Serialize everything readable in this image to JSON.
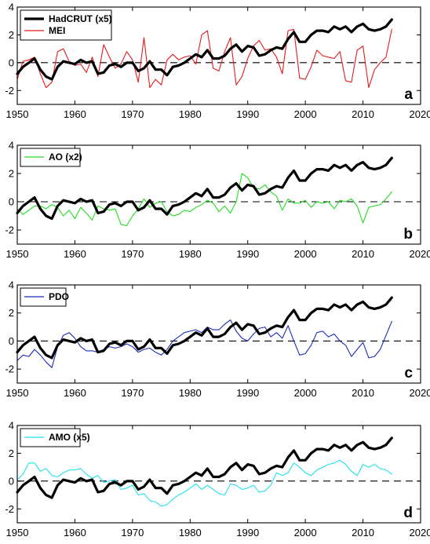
{
  "chart_data": [
    {
      "type": "line",
      "panel_label": "a",
      "xlim": [
        1950,
        2020
      ],
      "ylim": [
        -3,
        4
      ],
      "x_ticks": [
        1950,
        1960,
        1970,
        1980,
        1990,
        2000,
        2010,
        2020
      ],
      "y_ticks": [
        -2,
        0,
        2,
        4
      ],
      "zero_line": "dashed",
      "legend_position": "top-left",
      "series": [
        {
          "name": "HadCRUT (x5)",
          "color": "#000000",
          "width": "thick",
          "x": [
            1950,
            1951,
            1952,
            1953,
            1954,
            1955,
            1956,
            1957,
            1958,
            1959,
            1960,
            1961,
            1962,
            1963,
            1964,
            1965,
            1966,
            1967,
            1968,
            1969,
            1970,
            1971,
            1972,
            1973,
            1974,
            1975,
            1976,
            1977,
            1978,
            1979,
            1980,
            1981,
            1982,
            1983,
            1984,
            1985,
            1986,
            1987,
            1988,
            1989,
            1990,
            1991,
            1992,
            1993,
            1994,
            1995,
            1996,
            1997,
            1998,
            1999,
            2000,
            2001,
            2002,
            2003,
            2004,
            2005,
            2006,
            2007,
            2008,
            2009,
            2010,
            2011,
            2012,
            2013,
            2014,
            2015
          ],
          "y": [
            -0.8,
            -0.3,
            0.0,
            0.3,
            -0.5,
            -1.0,
            -1.2,
            -0.3,
            0.1,
            0.0,
            -0.1,
            0.2,
            0.0,
            0.1,
            -0.8,
            -0.7,
            -0.2,
            -0.1,
            -0.3,
            0.0,
            0.0,
            -0.6,
            -0.4,
            0.1,
            -0.5,
            -0.5,
            -0.9,
            -0.3,
            -0.2,
            0.0,
            0.3,
            0.6,
            0.4,
            0.9,
            0.3,
            0.3,
            0.5,
            1.0,
            1.3,
            0.8,
            1.2,
            1.1,
            0.5,
            0.6,
            0.9,
            1.1,
            1.0,
            1.7,
            2.2,
            1.5,
            1.5,
            2.0,
            2.3,
            2.3,
            2.2,
            2.6,
            2.4,
            2.6,
            2.2,
            2.6,
            2.8,
            2.4,
            2.3,
            2.4,
            2.6,
            3.1
          ]
        },
        {
          "name": "MEI",
          "color": "#e41a1c",
          "width": "thin",
          "x": [
            1950,
            1951,
            1952,
            1953,
            1954,
            1955,
            1956,
            1957,
            1958,
            1959,
            1960,
            1961,
            1962,
            1963,
            1964,
            1965,
            1966,
            1967,
            1968,
            1969,
            1970,
            1971,
            1972,
            1973,
            1974,
            1975,
            1976,
            1977,
            1978,
            1979,
            1980,
            1981,
            1982,
            1983,
            1984,
            1985,
            1986,
            1987,
            1988,
            1989,
            1990,
            1991,
            1992,
            1993,
            1994,
            1995,
            1996,
            1997,
            1998,
            1999,
            2000,
            2001,
            2002,
            2003,
            2004,
            2005,
            2006,
            2007,
            2008,
            2009,
            2010,
            2011,
            2012,
            2013,
            2014,
            2015
          ],
          "y": [
            -1.2,
            0.1,
            0.2,
            0.4,
            -0.8,
            -1.8,
            -1.4,
            0.8,
            1.0,
            0.1,
            -0.2,
            -0.1,
            -0.7,
            0.4,
            -1.0,
            1.3,
            0.4,
            -0.4,
            -0.1,
            0.8,
            0.2,
            -1.4,
            1.8,
            -1.8,
            -1.2,
            -1.6,
            0.2,
            0.6,
            0.2,
            0.4,
            0.5,
            -0.1,
            2.0,
            2.3,
            -0.4,
            -0.6,
            0.8,
            1.8,
            -1.6,
            -1.0,
            0.3,
            1.2,
            1.6,
            0.9,
            1.0,
            0.4,
            -0.8,
            2.3,
            2.4,
            -1.1,
            -1.2,
            -0.3,
            0.9,
            0.5,
            0.4,
            0.3,
            0.8,
            -1.3,
            -1.4,
            0.9,
            1.2,
            -1.8,
            -0.5,
            0.0,
            0.4,
            2.4
          ]
        }
      ]
    },
    {
      "type": "line",
      "panel_label": "b",
      "xlim": [
        1950,
        2020
      ],
      "ylim": [
        -3,
        4
      ],
      "x_ticks": [
        1950,
        1960,
        1970,
        1980,
        1990,
        2000,
        2010,
        2020
      ],
      "y_ticks": [
        -2,
        0,
        2,
        4
      ],
      "zero_line": "dashed",
      "legend_position": "top-left",
      "series": [
        {
          "name": "",
          "color": "#000000",
          "width": "thick",
          "ref": "HadCRUT"
        },
        {
          "name": "AO (x2)",
          "color": "#22dd22",
          "width": "thin",
          "x": [
            1950,
            1951,
            1952,
            1953,
            1954,
            1955,
            1956,
            1957,
            1958,
            1959,
            1960,
            1961,
            1962,
            1963,
            1964,
            1965,
            1966,
            1967,
            1968,
            1969,
            1970,
            1971,
            1972,
            1973,
            1974,
            1975,
            1976,
            1977,
            1978,
            1979,
            1980,
            1981,
            1982,
            1983,
            1984,
            1985,
            1986,
            1987,
            1988,
            1989,
            1990,
            1991,
            1992,
            1993,
            1994,
            1995,
            1996,
            1997,
            1998,
            1999,
            2000,
            2001,
            2002,
            2003,
            2004,
            2005,
            2006,
            2007,
            2008,
            2009,
            2010,
            2011,
            2012,
            2013,
            2014,
            2015
          ],
          "y": [
            -0.5,
            -0.9,
            -0.6,
            -0.3,
            -0.3,
            -0.5,
            -0.2,
            -0.4,
            -1.0,
            -0.6,
            -1.2,
            -0.4,
            -0.8,
            -1.3,
            -0.3,
            -0.5,
            -0.6,
            -0.5,
            -1.6,
            -1.7,
            -1.0,
            -0.5,
            0.2,
            -0.4,
            -0.1,
            0.0,
            -0.7,
            -1.0,
            -0.9,
            -0.6,
            -0.7,
            -0.4,
            -0.2,
            0.1,
            -0.1,
            -0.7,
            -0.3,
            -0.8,
            0.0,
            2.0,
            1.7,
            1.0,
            0.9,
            1.2,
            0.7,
            0.4,
            -0.6,
            0.2,
            -0.1,
            -0.1,
            0.1,
            -0.4,
            0.0,
            -0.1,
            0.0,
            -0.5,
            0.1,
            0.0,
            0.2,
            -0.3,
            -1.5,
            -0.4,
            -0.3,
            -0.2,
            0.2,
            0.7
          ]
        }
      ]
    },
    {
      "type": "line",
      "panel_label": "c",
      "xlim": [
        1950,
        2020
      ],
      "ylim": [
        -3,
        4
      ],
      "x_ticks": [
        1950,
        1960,
        1970,
        1980,
        1990,
        2000,
        2010,
        2020
      ],
      "y_ticks": [
        -2,
        0,
        2,
        4
      ],
      "zero_line": "dashed",
      "legend_position": "top-left",
      "series": [
        {
          "name": "",
          "color": "#000000",
          "width": "thick",
          "ref": "HadCRUT"
        },
        {
          "name": "PDO",
          "color": "#1c2bb8",
          "width": "thin",
          "x": [
            1950,
            1951,
            1952,
            1953,
            1954,
            1955,
            1956,
            1957,
            1958,
            1959,
            1960,
            1961,
            1962,
            1963,
            1964,
            1965,
            1966,
            1967,
            1968,
            1969,
            1970,
            1971,
            1972,
            1973,
            1974,
            1975,
            1976,
            1977,
            1978,
            1979,
            1980,
            1981,
            1982,
            1983,
            1984,
            1985,
            1986,
            1987,
            1988,
            1989,
            1990,
            1991,
            1992,
            1993,
            1994,
            1995,
            1996,
            1997,
            1998,
            1999,
            2000,
            2001,
            2002,
            2003,
            2004,
            2005,
            2006,
            2007,
            2008,
            2009,
            2010,
            2011,
            2012,
            2013,
            2014,
            2015
          ],
          "y": [
            -1.4,
            -1.0,
            -1.1,
            -0.6,
            -1.0,
            -1.5,
            -1.9,
            -0.4,
            0.4,
            0.6,
            0.2,
            -0.4,
            -0.7,
            -0.7,
            -0.8,
            -0.6,
            -0.4,
            -0.5,
            -0.4,
            -0.2,
            -0.4,
            -0.8,
            -0.6,
            -0.5,
            -0.8,
            -1.0,
            -0.6,
            0.0,
            0.3,
            0.6,
            0.7,
            0.8,
            0.6,
            1.0,
            0.8,
            0.8,
            1.2,
            1.5,
            0.7,
            0.2,
            0.0,
            0.5,
            0.9,
            1.0,
            0.3,
            0.6,
            0.2,
            1.1,
            0.0,
            -1.0,
            -0.9,
            -0.3,
            0.6,
            0.7,
            0.3,
            0.5,
            0.0,
            -0.3,
            -1.1,
            -0.6,
            -0.1,
            -1.2,
            -1.1,
            -0.6,
            0.4,
            1.4
          ]
        }
      ]
    },
    {
      "type": "line",
      "panel_label": "d",
      "xlim": [
        1950,
        2020
      ],
      "ylim": [
        -3,
        4
      ],
      "x_ticks": [
        1950,
        1960,
        1970,
        1980,
        1990,
        2000,
        2010,
        2020
      ],
      "y_ticks": [
        -2,
        0,
        2,
        4
      ],
      "zero_line": "dashed",
      "legend_position": "top-left",
      "series": [
        {
          "name": "",
          "color": "#000000",
          "width": "thick",
          "ref": "HadCRUT"
        },
        {
          "name": "AMO (x5)",
          "color": "#22e0f0",
          "width": "thin",
          "x": [
            1950,
            1951,
            1952,
            1953,
            1954,
            1955,
            1956,
            1957,
            1958,
            1959,
            1960,
            1961,
            1962,
            1963,
            1964,
            1965,
            1966,
            1967,
            1968,
            1969,
            1970,
            1971,
            1972,
            1973,
            1974,
            1975,
            1976,
            1977,
            1978,
            1979,
            1980,
            1981,
            1982,
            1983,
            1984,
            1985,
            1986,
            1987,
            1988,
            1989,
            1990,
            1991,
            1992,
            1993,
            1994,
            1995,
            1996,
            1997,
            1998,
            1999,
            2000,
            2001,
            2002,
            2003,
            2004,
            2005,
            2006,
            2007,
            2008,
            2009,
            2010,
            2011,
            2012,
            2013,
            2014,
            2015
          ],
          "y": [
            0.1,
            0.5,
            1.3,
            1.3,
            0.7,
            0.9,
            0.4,
            0.3,
            0.6,
            0.8,
            0.8,
            0.9,
            0.5,
            0.2,
            0.4,
            -0.1,
            0.0,
            0.1,
            -0.6,
            -0.5,
            -0.3,
            -1.0,
            -0.9,
            -1.4,
            -1.5,
            -1.8,
            -1.7,
            -1.3,
            -1.0,
            -0.8,
            -0.5,
            -0.2,
            -0.6,
            -0.3,
            -0.6,
            -0.9,
            -1.0,
            -0.2,
            -0.3,
            -0.6,
            -0.5,
            -0.3,
            -0.8,
            -0.7,
            -0.3,
            0.6,
            0.4,
            0.6,
            1.3,
            1.0,
            0.6,
            0.4,
            0.8,
            1.0,
            1.2,
            1.3,
            1.5,
            1.2,
            0.7,
            0.4,
            1.2,
            1.0,
            1.2,
            0.9,
            0.8,
            0.5
          ]
        }
      ]
    }
  ]
}
